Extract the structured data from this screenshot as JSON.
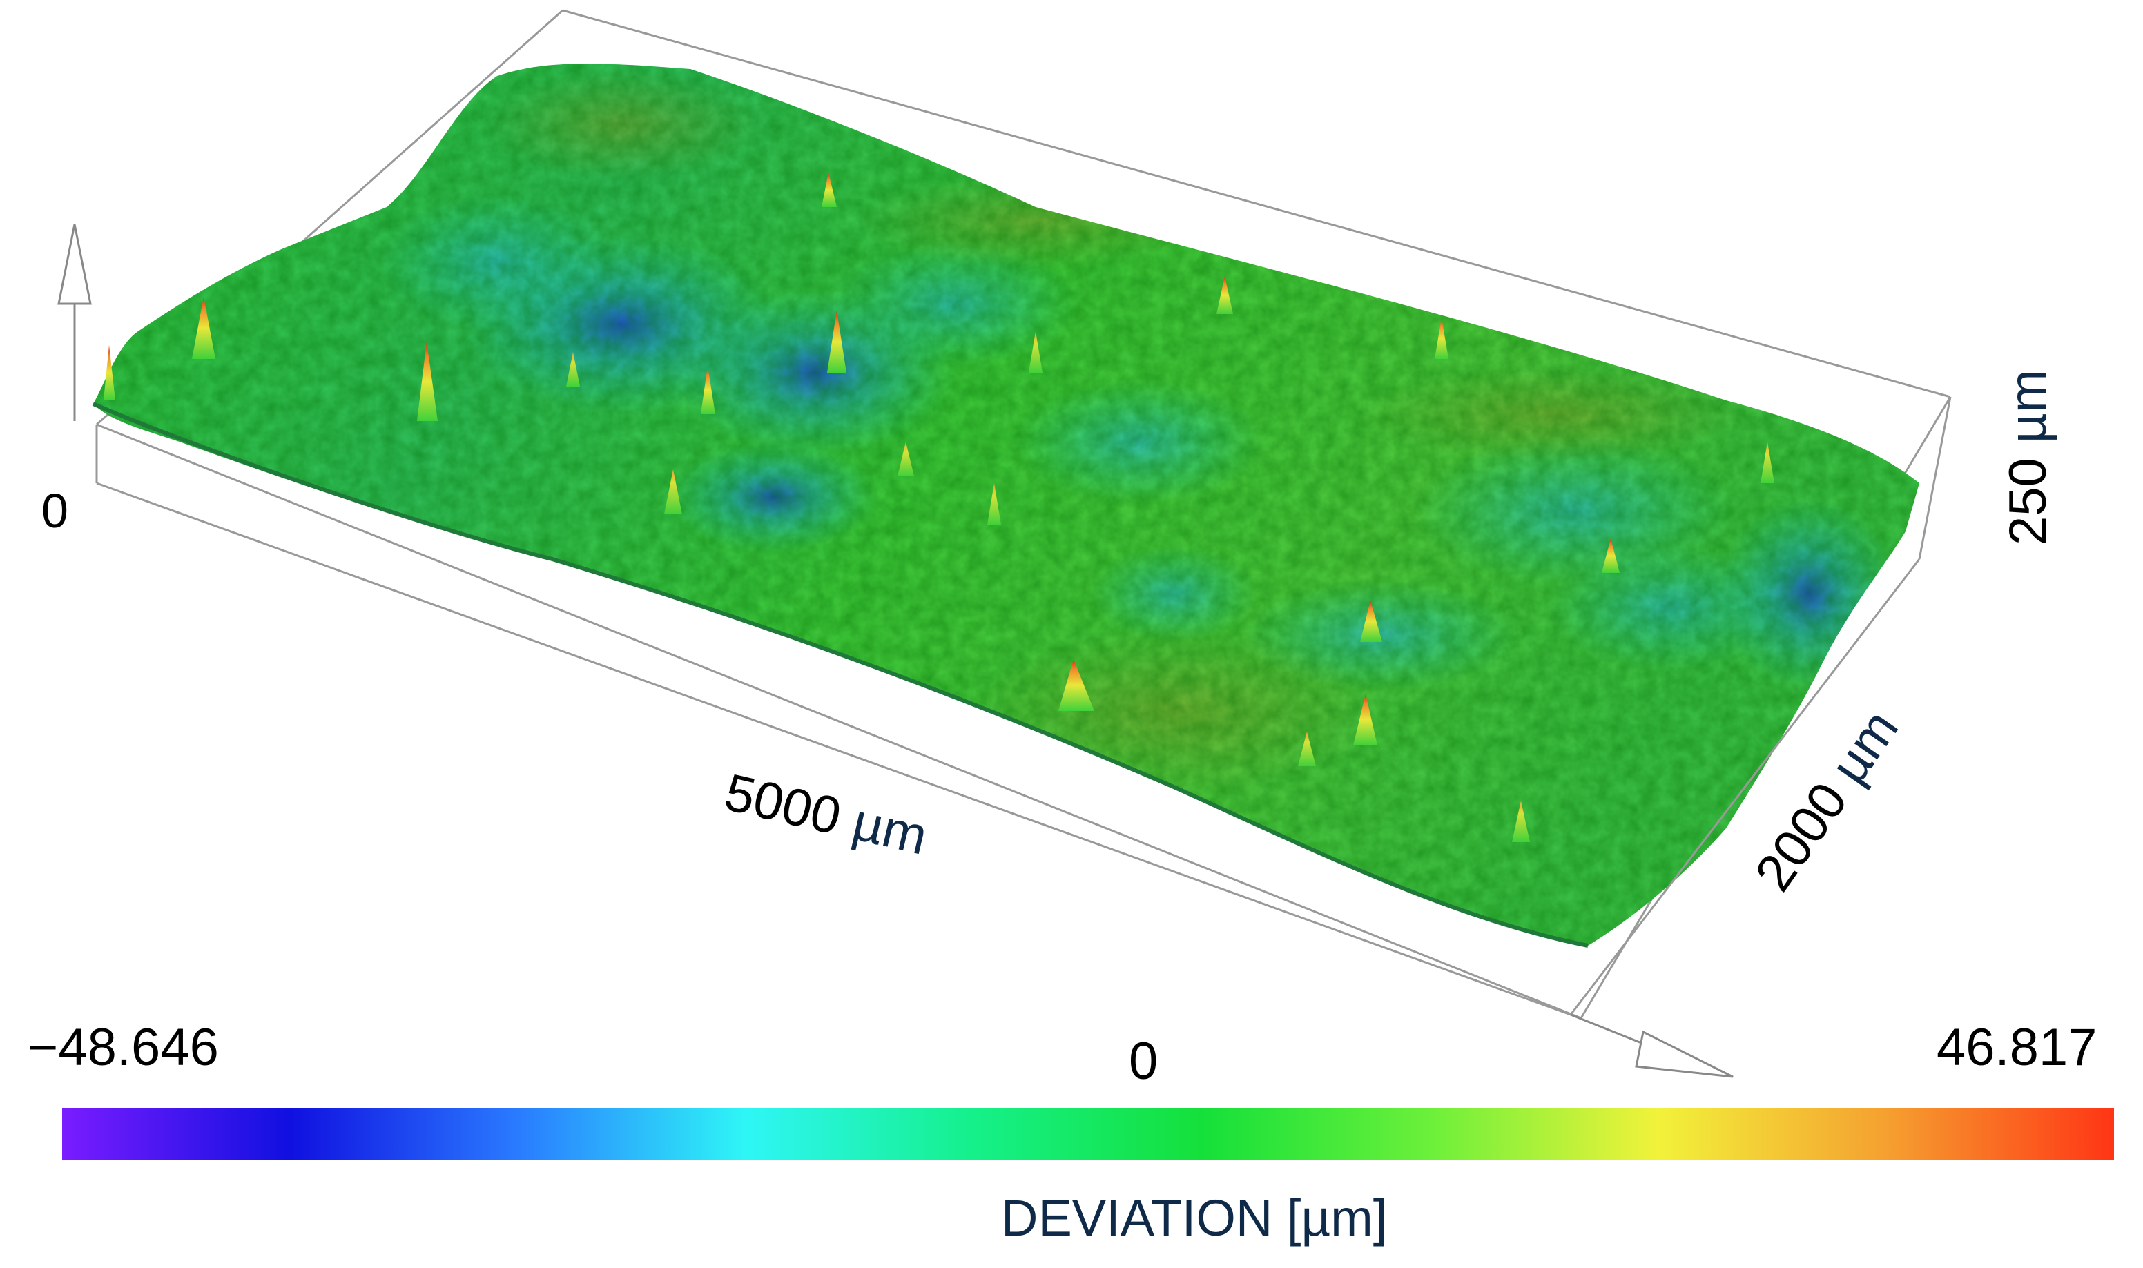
{
  "figure": {
    "origin_label": "0",
    "length_value": "5000",
    "width_value": "2000",
    "height_value": "250",
    "unit": "µm"
  },
  "scale": {
    "min": "−48.646",
    "zero": "0",
    "max": "46.817",
    "title": "DEVIATION  [µm]",
    "colors": [
      "#7a1cff",
      "#1010e0",
      "#2a7bff",
      "#2ef6f6",
      "#15f08a",
      "#15e03a",
      "#6cf03a",
      "#f2f23a",
      "#f5a030",
      "#ff3515"
    ]
  }
}
